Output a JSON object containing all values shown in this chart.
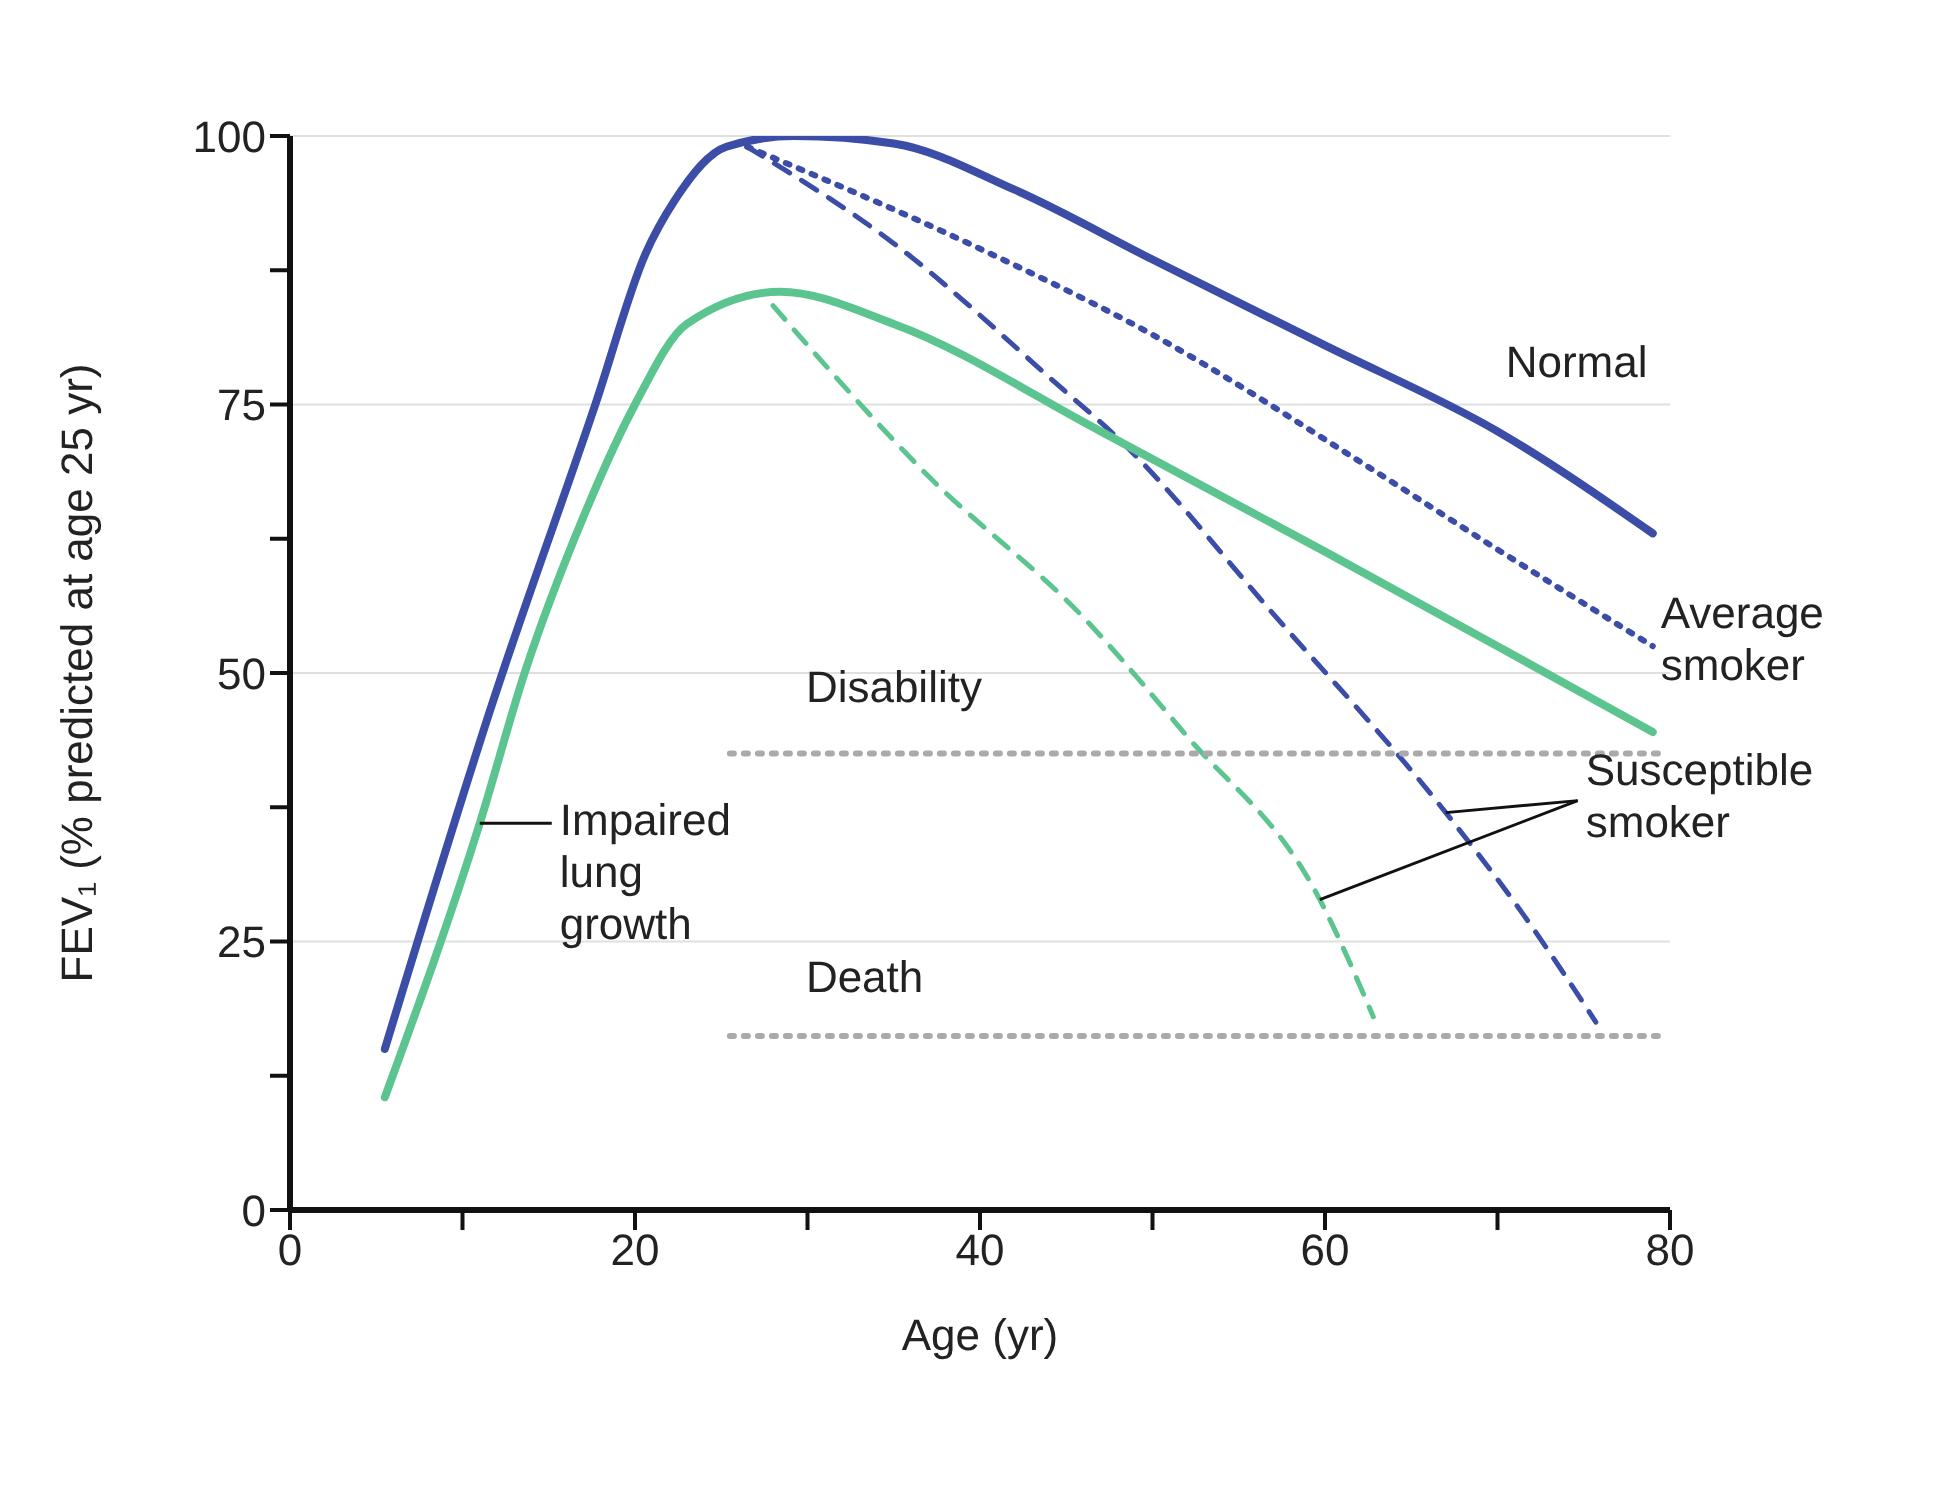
{
  "chart_data": {
    "type": "line",
    "xlabel": "Age (yr)",
    "ylabel": "FEV₁ (% predicted at age 25 yr)",
    "xlim": [
      0,
      80
    ],
    "xticks": [
      0,
      {
        "value": 10,
        "label": null
      },
      20,
      {
        "value": 30,
        "label": null
      },
      40,
      {
        "value": 50,
        "label": null
      },
      60,
      {
        "value": 70,
        "label": null
      },
      80
    ],
    "ylim": [
      0,
      100
    ],
    "yticks": [
      0,
      {
        "value": 12.5,
        "label": null
      },
      25,
      {
        "value": 37.5,
        "label": null
      },
      50,
      {
        "value": 62.5,
        "label": null
      },
      75,
      {
        "value": 87.5,
        "label": null
      },
      100
    ],
    "grid": "y",
    "series": [
      {
        "name": "Normal",
        "color": "#3b4da6",
        "line_style": "solid",
        "x": [
          5.5,
          11.8,
          17.7,
          20.6,
          22.3,
          25.3,
          29.2,
          35,
          42,
          50,
          60,
          70,
          79
        ],
        "values": [
          15,
          47.5,
          75,
          89,
          94,
          99,
          100,
          99.3,
          95,
          88.5,
          80.5,
          72.5,
          63
        ]
      },
      {
        "name": "Average smoker",
        "color": "#3b4da6",
        "line_style": "dotted",
        "x": [
          26.5,
          40,
          50,
          62.4,
          70,
          79
        ],
        "values": [
          99,
          89.5,
          81.5,
          69.3,
          61.5,
          52.5
        ]
      },
      {
        "color": "#3b4da6",
        "line_style": "dashed",
        "x": [
          26.5,
          35,
          44.6,
          48.1,
          57,
          67,
          71.5,
          75.7
        ],
        "values": [
          99,
          90,
          76.7,
          71.7,
          55.5,
          37,
          27.5,
          17.5
        ]
      },
      {
        "color": "#5cc48f",
        "line_style": "solid",
        "x": [
          5.5,
          11,
          13.6,
          17,
          20,
          23,
          28.4,
          35,
          47,
          60,
          70,
          79
        ],
        "values": [
          10.5,
          36,
          50,
          64.5,
          75,
          82.5,
          85.5,
          82.5,
          72.5,
          61.3,
          52.5,
          44.5
        ]
      },
      {
        "color": "#5cc48f",
        "line_style": "dashed",
        "x": [
          28,
          36.9,
          46.1,
          51.9,
          59.7,
          62.8
        ],
        "values": [
          84.2,
          68.5,
          55,
          44.3,
          28.9,
          18
        ]
      },
      {
        "name": "Disability",
        "color": "#aaaaaa",
        "line_style": "dotted",
        "x": [
          25.5,
          79.5
        ],
        "values": [
          42.5,
          42.5
        ]
      },
      {
        "name": "Death",
        "color": "#aaaaaa",
        "line_style": "dotted",
        "x": [
          25.5,
          79.5
        ],
        "values": [
          16.2,
          16.2
        ]
      }
    ],
    "annotations": [
      {
        "text": "Susceptible smoker",
        "x": 67,
        "y": 37
      },
      {
        "text": "Impaired lung growth",
        "x": 11,
        "y": 36
      }
    ]
  }
}
